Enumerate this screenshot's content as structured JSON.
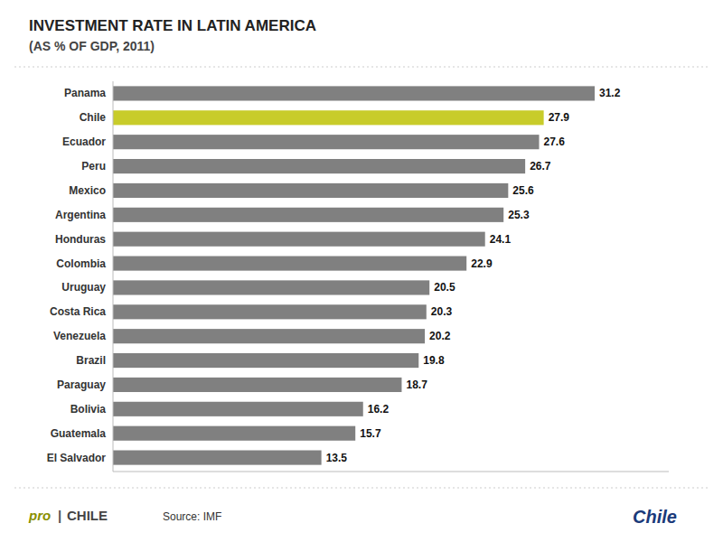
{
  "chart_data": {
    "type": "bar",
    "orientation": "horizontal",
    "title": "INVESTMENT RATE IN LATIN AMERICA",
    "subtitle": "(AS % OF GDP, 2011)",
    "categories": [
      "Panama",
      "Chile",
      "Ecuador",
      "Peru",
      "Mexico",
      "Argentina",
      "Honduras",
      "Colombia",
      "Uruguay",
      "Costa Rica",
      "Venezuela",
      "Brazil",
      "Paraguay",
      "Bolivia",
      "Guatemala",
      "El Salvador"
    ],
    "values": [
      31.2,
      27.9,
      27.6,
      26.7,
      25.6,
      25.3,
      24.1,
      22.9,
      20.5,
      20.3,
      20.2,
      19.8,
      18.7,
      16.2,
      15.7,
      13.5
    ],
    "colors": [
      "#808080",
      "#c8cc2a",
      "#808080",
      "#808080",
      "#808080",
      "#808080",
      "#808080",
      "#808080",
      "#808080",
      "#808080",
      "#808080",
      "#808080",
      "#808080",
      "#808080",
      "#808080",
      "#808080"
    ],
    "xlim": [
      0,
      36
    ],
    "grid": false,
    "data_labels": true,
    "tick_labels": "y",
    "annotations": [
      "Source: IMF",
      "pro",
      "|",
      "CHILE",
      "Chile"
    ]
  }
}
